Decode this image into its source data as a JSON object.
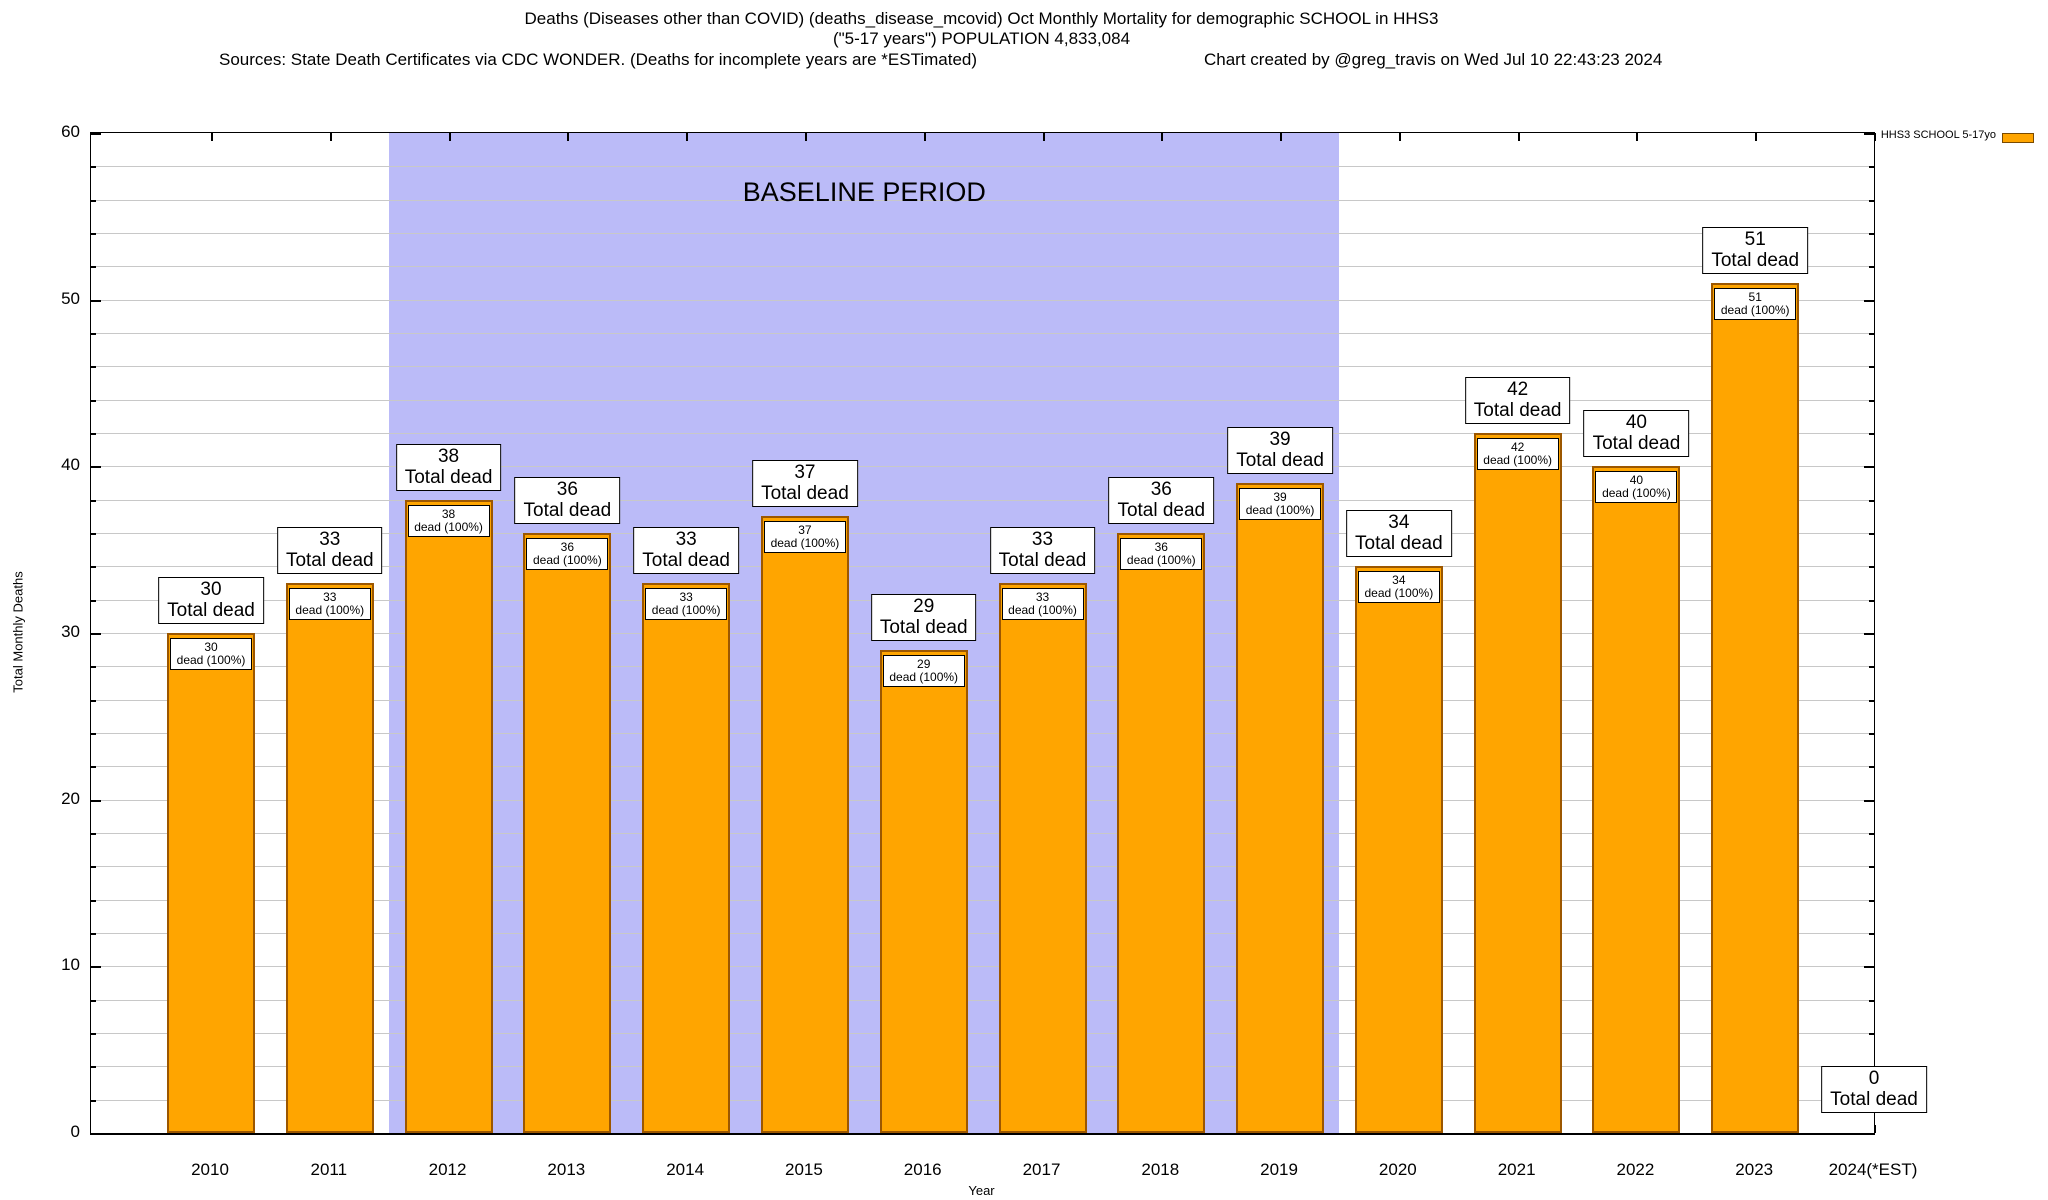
{
  "title": {
    "line1": "Deaths (Diseases other than COVID) (deaths_disease_mcovid) Oct Monthly Mortality for demographic SCHOOL in HHS3",
    "line2": "(\"5-17 years\") POPULATION 4,833,084",
    "sources": "Sources: State Death Certificates via CDC WONDER. (Deaths for incomplete years are *ESTimated)",
    "credit": "Chart created by @greg_travis on Wed Jul 10 22:43:23 2024"
  },
  "legend": {
    "label": "HHS3 SCHOOL 5-17yo"
  },
  "axes": {
    "ylabel": "Total Monthly Deaths",
    "xlabel": "Year",
    "ylim": [
      0,
      60
    ],
    "ytick_values": [
      0,
      10,
      20,
      30,
      40,
      50,
      60
    ],
    "minor_grid_step": 2
  },
  "annotations": {
    "baseline_label": "BASELINE PERIOD",
    "baseline_span_years": [
      2011.5,
      2019.5
    ]
  },
  "bar_labels": {
    "total_suffix": "Total dead",
    "inner_suffix": "dead (100%)"
  },
  "chart_data": {
    "type": "bar",
    "title": "Deaths (Diseases other than COVID) (deaths_disease_mcovid) Oct Monthly Mortality for demographic SCHOOL in HHS3 (\"5-17 years\") POPULATION 4,833,084",
    "series_name": "HHS3 SCHOOL 5-17yo",
    "categories": [
      "2010",
      "2011",
      "2012",
      "2013",
      "2014",
      "2015",
      "2016",
      "2017",
      "2018",
      "2019",
      "2020",
      "2021",
      "2022",
      "2023",
      "2024(*EST)"
    ],
    "values": [
      30,
      33,
      38,
      36,
      33,
      37,
      29,
      33,
      36,
      39,
      34,
      42,
      40,
      51,
      0
    ],
    "xlabel": "Year",
    "ylabel": "Total Monthly Deaths",
    "ylim": [
      0,
      60
    ],
    "grid": true,
    "legend_position": "top-right-outside",
    "annotation": "BASELINE PERIOD band spans mid-2011 through mid-2019 (years 2012-2019)"
  },
  "colors": {
    "bar_fill": "#FFA500",
    "bar_border": "#9C5700",
    "baseline_band": "#BBBBF8",
    "grid": "#C8C8C8",
    "axis": "#000000",
    "label_box_bg": "#FFFFFF"
  }
}
